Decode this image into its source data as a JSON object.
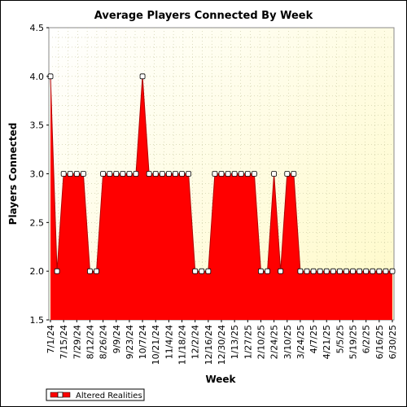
{
  "chart_data": {
    "type": "area",
    "title": "Average Players Connected By Week",
    "xlabel": "Week",
    "ylabel": "Players Connected",
    "ylim": [
      1.5,
      4.5
    ],
    "yticks": [
      "1.5",
      "2.0",
      "2.5",
      "3.0",
      "3.5",
      "4.0",
      "4.5"
    ],
    "grid": true,
    "legend_placement": "bottom-left",
    "x_tick_labels": [
      "7/1/24",
      "7/15/24",
      "7/29/24",
      "8/12/24",
      "8/26/24",
      "9/9/24",
      "9/23/24",
      "10/7/24",
      "10/21/24",
      "11/4/24",
      "11/18/24",
      "12/2/24",
      "12/16/24",
      "12/30/24",
      "1/13/25",
      "1/27/25",
      "2/10/25",
      "2/24/25",
      "3/10/25",
      "3/24/25",
      "4/7/25",
      "4/21/25",
      "5/5/25",
      "5/19/25",
      "6/2/25",
      "6/16/25",
      "6/30/25"
    ],
    "series": [
      {
        "name": "Altered Realities",
        "color": "#ff0000",
        "x": [
          "7/1/24",
          "7/8/24",
          "7/15/24",
          "7/22/24",
          "7/29/24",
          "8/5/24",
          "8/12/24",
          "8/19/24",
          "8/26/24",
          "9/2/24",
          "9/9/24",
          "9/16/24",
          "9/23/24",
          "9/30/24",
          "10/7/24",
          "10/14/24",
          "10/21/24",
          "10/28/24",
          "11/4/24",
          "11/11/24",
          "11/18/24",
          "11/25/24",
          "12/2/24",
          "12/9/24",
          "12/16/24",
          "12/23/24",
          "12/30/24",
          "1/6/25",
          "1/13/25",
          "1/20/25",
          "1/27/25",
          "2/3/25",
          "2/10/25",
          "2/17/25",
          "2/24/25",
          "3/3/25",
          "3/10/25",
          "3/17/25",
          "3/24/25",
          "3/31/25",
          "4/7/25",
          "4/14/25",
          "4/21/25",
          "4/28/25",
          "5/5/25",
          "5/12/25",
          "5/19/25",
          "5/26/25",
          "6/2/25",
          "6/9/25",
          "6/16/25",
          "6/23/25",
          "6/30/25"
        ],
        "values": [
          4,
          2,
          3,
          3,
          3,
          3,
          2,
          2,
          3,
          3,
          3,
          3,
          3,
          3,
          4,
          3,
          3,
          3,
          3,
          3,
          3,
          3,
          2,
          2,
          2,
          3,
          3,
          3,
          3,
          3,
          3,
          3,
          2,
          2,
          3,
          2,
          3,
          3,
          2,
          2,
          2,
          2,
          2,
          2,
          2,
          2,
          2,
          2,
          2,
          2,
          2,
          2,
          2
        ]
      }
    ]
  }
}
